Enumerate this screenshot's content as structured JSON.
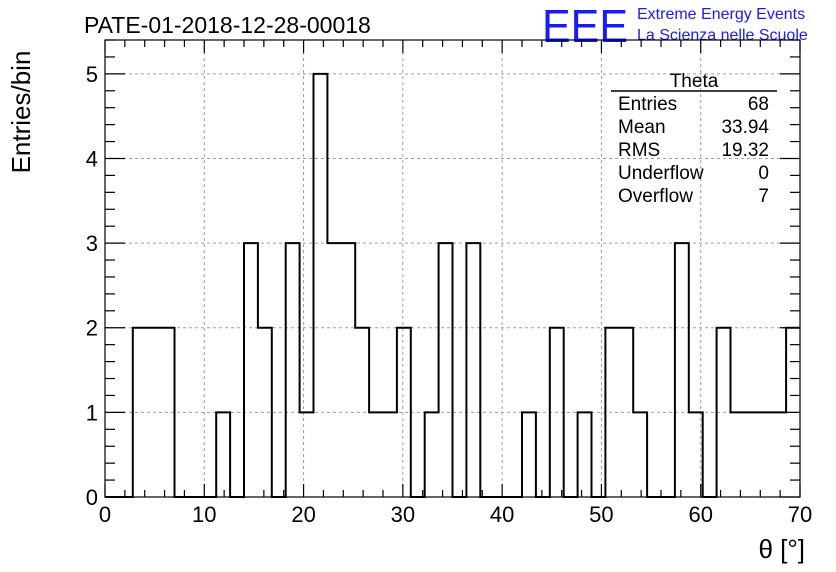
{
  "header": {
    "run_title": "PATE-01-2018-12-28-00018",
    "logo_mark": "EEE",
    "logo_line1": "Extreme Energy Events",
    "logo_line2": "La Scienza nelle Scuole"
  },
  "stats": {
    "title": "Theta",
    "rows": [
      {
        "label": "Entries",
        "value": "68"
      },
      {
        "label": "Mean",
        "value": "33.94"
      },
      {
        "label": "RMS",
        "value": "19.32"
      },
      {
        "label": "Underflow",
        "value": "0"
      },
      {
        "label": "Overflow",
        "value": "7"
      }
    ]
  },
  "colors": {
    "histogram_line": "#000000",
    "grid": "#a0a0a0",
    "logo": "#1a1aff"
  },
  "chart_data": {
    "type": "bar",
    "histogram_style": "step",
    "xlabel": "θ [°]",
    "ylabel": "Entries/bin",
    "xlim": [
      0,
      70
    ],
    "ylim": [
      0,
      5.4
    ],
    "x_ticks": [
      0,
      10,
      20,
      30,
      40,
      50,
      60,
      70
    ],
    "y_ticks": [
      0,
      1,
      2,
      3,
      4,
      5
    ],
    "grid": true,
    "bin_width": 1.4,
    "bin_edges_start": 0,
    "values": [
      0,
      0,
      2,
      2,
      2,
      0,
      0,
      0,
      1,
      0,
      3,
      2,
      0,
      3,
      1,
      5,
      3,
      3,
      2,
      1,
      1,
      2,
      0,
      1,
      3,
      0,
      3,
      0,
      0,
      0,
      1,
      0,
      2,
      0,
      1,
      0,
      2,
      2,
      1,
      0,
      0,
      3,
      1,
      0,
      2,
      1,
      1,
      1,
      1,
      2
    ]
  }
}
